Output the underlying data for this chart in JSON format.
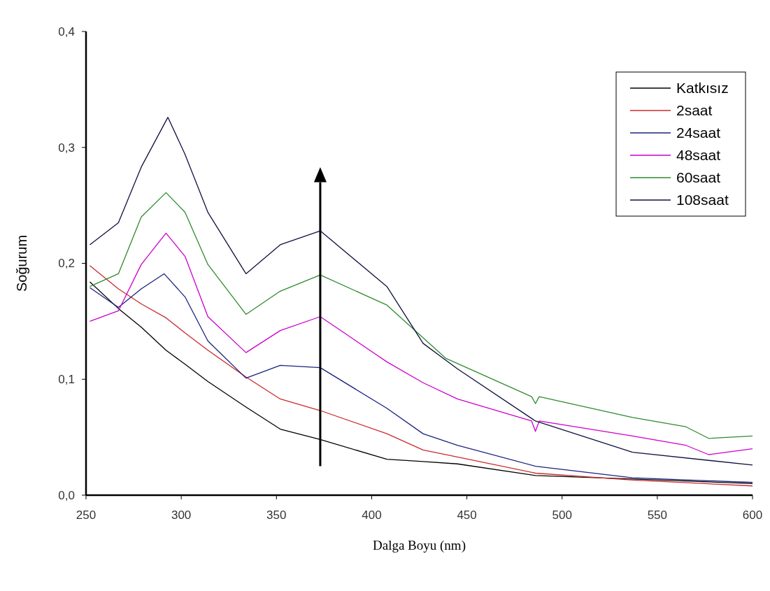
{
  "chart_data": {
    "type": "line",
    "xlabel": "Dalga Boyu (nm)",
    "ylabel": "Soğurum",
    "xlim": [
      250,
      600
    ],
    "xticks": [
      250,
      300,
      350,
      400,
      450,
      500,
      550,
      600
    ],
    "ylim": [
      0,
      0.4
    ],
    "yticks": [
      {
        "value": 0,
        "label": "0,0"
      },
      {
        "value": 0.1,
        "label": "0,1"
      },
      {
        "value": 0.2,
        "label": "0,2"
      },
      {
        "value": 0.3,
        "label": "0,3"
      },
      {
        "value": 0.4,
        "label": "0,4"
      }
    ],
    "grid": false,
    "legend": "top right",
    "marker": "none",
    "line_style": "solid",
    "series": [
      {
        "name": "Katkısız",
        "color": "#000000",
        "x": [
          252,
          267,
          279,
          292,
          302,
          314,
          334,
          352,
          373,
          408,
          427,
          445,
          486,
          537,
          600
        ],
        "values": [
          0.184,
          0.161,
          0.145,
          0.125,
          0.113,
          0.098,
          0.076,
          0.057,
          0.048,
          0.031,
          0.029,
          0.027,
          0.017,
          0.014,
          0.01
        ]
      },
      {
        "name": "2saat",
        "color": "#cc2a2a",
        "x": [
          252,
          267,
          279,
          292,
          302,
          314,
          334,
          352,
          373,
          408,
          427,
          445,
          486,
          537,
          600
        ],
        "values": [
          0.198,
          0.178,
          0.165,
          0.153,
          0.14,
          0.125,
          0.102,
          0.083,
          0.073,
          0.053,
          0.039,
          0.033,
          0.019,
          0.013,
          0.008
        ]
      },
      {
        "name": "24saat",
        "color": "#1a237e",
        "x": [
          252,
          267,
          279,
          291,
          302,
          314,
          334,
          352,
          373,
          408,
          427,
          445,
          486,
          537,
          600
        ],
        "values": [
          0.179,
          0.162,
          0.178,
          0.191,
          0.171,
          0.133,
          0.101,
          0.112,
          0.11,
          0.075,
          0.053,
          0.043,
          0.025,
          0.015,
          0.011
        ]
      },
      {
        "name": "48saat",
        "color": "#cc00cc",
        "x": [
          252,
          267,
          279,
          292,
          302,
          314,
          334,
          352,
          373,
          408,
          427,
          445,
          484,
          486,
          488,
          537,
          565,
          577,
          600
        ],
        "values": [
          0.15,
          0.159,
          0.199,
          0.226,
          0.206,
          0.154,
          0.123,
          0.142,
          0.154,
          0.115,
          0.097,
          0.083,
          0.064,
          0.055,
          0.064,
          0.051,
          0.043,
          0.035,
          0.04
        ]
      },
      {
        "name": "60saat",
        "color": "#2e8b2e",
        "x": [
          252,
          267,
          279,
          292,
          302,
          314,
          334,
          352,
          373,
          408,
          439,
          484,
          486,
          488,
          537,
          565,
          577,
          600
        ],
        "values": [
          0.18,
          0.191,
          0.24,
          0.261,
          0.244,
          0.199,
          0.156,
          0.176,
          0.19,
          0.164,
          0.118,
          0.085,
          0.079,
          0.085,
          0.067,
          0.059,
          0.049,
          0.051
        ]
      },
      {
        "name": "108saat",
        "color": "#101040",
        "x": [
          252,
          267,
          279,
          293,
          302,
          314,
          334,
          352,
          373,
          408,
          427,
          445,
          486,
          537,
          600
        ],
        "values": [
          0.216,
          0.235,
          0.283,
          0.326,
          0.294,
          0.244,
          0.191,
          0.216,
          0.228,
          0.18,
          0.131,
          0.109,
          0.064,
          0.037,
          0.026
        ]
      }
    ]
  }
}
